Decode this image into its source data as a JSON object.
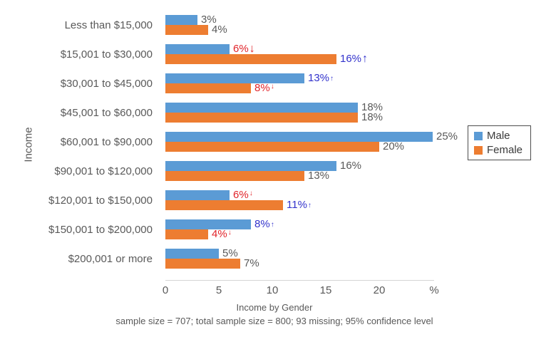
{
  "chart_data": {
    "type": "bar",
    "orientation": "horizontal",
    "title": "Income by Gender",
    "footnote": "sample size = 707; total sample size = 800; 93 missing; 95% confidence level",
    "y_axis_title": "Income",
    "x_axis_unit": "%",
    "x_tick_values": [
      0,
      5,
      10,
      15,
      20
    ],
    "x_tick_labels": [
      "0",
      "5",
      "10",
      "15",
      "20"
    ],
    "x_range": [
      0,
      25
    ],
    "grid": false,
    "legend_position": "right",
    "categories": [
      "Less than $15,000",
      "$15,001 to $30,000",
      "$30,001 to $45,000",
      "$45,001 to $60,000",
      "$60,001 to $90,000",
      "$90,001 to $120,000",
      "$120,001 to $150,000",
      "$150,001 to $200,000",
      "$200,001 or more"
    ],
    "series": [
      {
        "name": "Male",
        "color": "#5b9bd5",
        "points": [
          {
            "value": 3,
            "label": "3%",
            "significance": null
          },
          {
            "value": 6,
            "label": "6%",
            "significance": {
              "direction": "down",
              "size": "large"
            }
          },
          {
            "value": 13,
            "label": "13%",
            "significance": {
              "direction": "up",
              "size": "small"
            }
          },
          {
            "value": 18,
            "label": "18%",
            "significance": null
          },
          {
            "value": 25,
            "label": "25%",
            "significance": null
          },
          {
            "value": 16,
            "label": "16%",
            "significance": null
          },
          {
            "value": 6,
            "label": "6%",
            "significance": {
              "direction": "down",
              "size": "small"
            }
          },
          {
            "value": 8,
            "label": "8%",
            "significance": {
              "direction": "up",
              "size": "small"
            }
          },
          {
            "value": 5,
            "label": "5%",
            "significance": null
          }
        ]
      },
      {
        "name": "Female",
        "color": "#ed7d31",
        "points": [
          {
            "value": 4,
            "label": "4%",
            "significance": null
          },
          {
            "value": 16,
            "label": "16%",
            "significance": {
              "direction": "up",
              "size": "large"
            }
          },
          {
            "value": 8,
            "label": "8%",
            "significance": {
              "direction": "down",
              "size": "small"
            }
          },
          {
            "value": 18,
            "label": "18%",
            "significance": null
          },
          {
            "value": 20,
            "label": "20%",
            "significance": null
          },
          {
            "value": 13,
            "label": "13%",
            "significance": null
          },
          {
            "value": 11,
            "label": "11%",
            "significance": {
              "direction": "up",
              "size": "small"
            }
          },
          {
            "value": 4,
            "label": "4%",
            "significance": {
              "direction": "down",
              "size": "small"
            }
          },
          {
            "value": 7,
            "label": "7%",
            "significance": null
          }
        ]
      }
    ],
    "legend": [
      {
        "label": "Male",
        "color": "#5b9bd5"
      },
      {
        "label": "Female",
        "color": "#ed7d31"
      }
    ],
    "significance_colors": {
      "up": "#3333cc",
      "down": "#e1242a",
      "none": "#595959"
    },
    "arrow_glyphs": {
      "up": "↑",
      "down": "↓"
    }
  }
}
